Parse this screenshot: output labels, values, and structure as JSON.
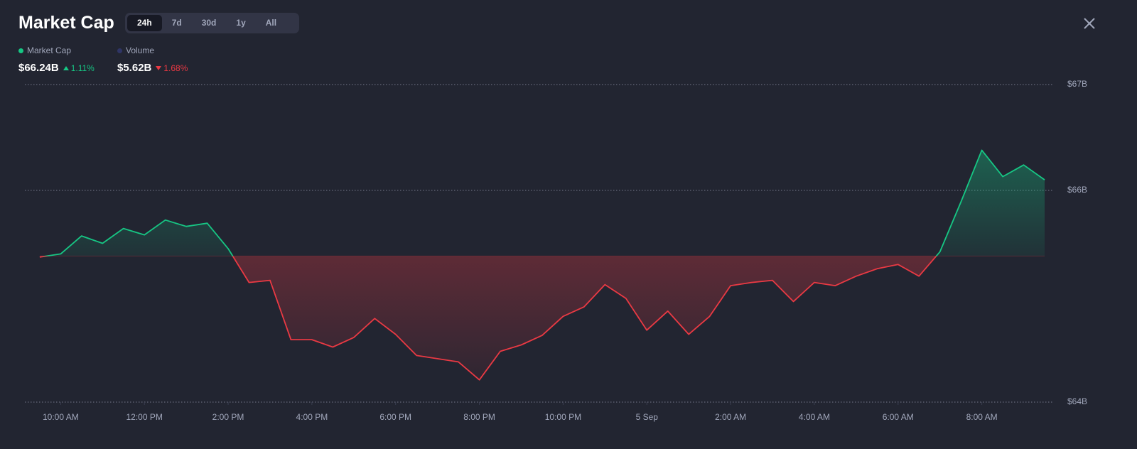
{
  "header": {
    "title": "Market Cap",
    "tabs": [
      "24h",
      "7d",
      "30d",
      "1y",
      "All"
    ],
    "active_tab": "24h"
  },
  "stats": [
    {
      "name": "Market Cap",
      "value": "$66.24B",
      "change": "1.11%",
      "direction": "up",
      "dot_color": "#16c784",
      "change_color": "#16c784"
    },
    {
      "name": "Volume",
      "value": "$5.62B",
      "change": "1.68%",
      "direction": "down",
      "dot_color": "#2f3566",
      "change_color": "#ea3943"
    }
  ],
  "chart_data": {
    "type": "line",
    "x": [
      9.5,
      10,
      10.5,
      11,
      11.5,
      12,
      12.5,
      13,
      13.5,
      14,
      14.5,
      15,
      15.5,
      16,
      16.5,
      17,
      17.5,
      18,
      18.5,
      19,
      19.5,
      20,
      20.5,
      21,
      21.5,
      22,
      22.5,
      23,
      23.5,
      24,
      24.5,
      25,
      25.5,
      26,
      26.5,
      27,
      27.5,
      28,
      28.5,
      29,
      29.5,
      30,
      30.5,
      31,
      31.5,
      32,
      32.5,
      33,
      33.5
    ],
    "values": [
      65.37,
      65.4,
      65.57,
      65.5,
      65.64,
      65.58,
      65.72,
      65.66,
      65.69,
      65.45,
      65.13,
      65.15,
      64.59,
      64.59,
      64.52,
      64.61,
      64.79,
      64.64,
      64.44,
      64.41,
      64.38,
      64.21,
      64.48,
      64.54,
      64.63,
      64.81,
      64.9,
      65.11,
      64.98,
      64.68,
      64.86,
      64.64,
      64.81,
      65.1,
      65.13,
      65.15,
      64.95,
      65.13,
      65.1,
      65.19,
      65.26,
      65.3,
      65.19,
      65.42,
      65.89,
      66.38,
      66.13,
      66.24,
      66.1
    ],
    "baseline": 65.38,
    "up_color": "#16c784",
    "down_color": "#ea3943",
    "xlim": [
      9.4,
      33.5
    ],
    "xticks": [
      {
        "value": 10,
        "label": "10:00 AM"
      },
      {
        "value": 12,
        "label": "12:00 PM"
      },
      {
        "value": 14,
        "label": "2:00 PM"
      },
      {
        "value": 16,
        "label": "4:00 PM"
      },
      {
        "value": 18,
        "label": "6:00 PM"
      },
      {
        "value": 20,
        "label": "8:00 PM"
      },
      {
        "value": 22,
        "label": "10:00 PM"
      },
      {
        "value": 24,
        "label": "5 Sep"
      },
      {
        "value": 26,
        "label": "2:00 AM"
      },
      {
        "value": 28,
        "label": "4:00 AM"
      },
      {
        "value": 30,
        "label": "6:00 AM"
      },
      {
        "value": 32,
        "label": "8:00 AM"
      }
    ],
    "ylim": [
      64,
      67
    ],
    "yticks": [
      {
        "value": 67,
        "label": "$67B"
      },
      {
        "value": 66,
        "label": "$66B"
      },
      {
        "value": 64,
        "label": "$64B"
      }
    ],
    "grid": true
  }
}
